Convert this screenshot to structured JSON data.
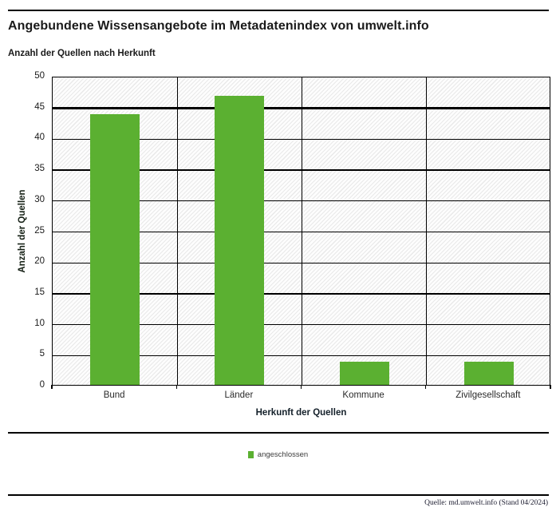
{
  "header": {
    "title": "Angebundene Wissensangebote im Metadatenindex von umwelt.info",
    "subtitle": "Anzahl der Quellen nach Herkunft"
  },
  "chart_data": {
    "type": "bar",
    "title": "Angebundene Wissensangebote im Metadatenindex von umwelt.info",
    "subtitle": "Anzahl der Quellen nach Herkunft",
    "categories": [
      "Bund",
      "Länder",
      "Kommune",
      "Zivilgesellschaft"
    ],
    "series": [
      {
        "name": "angeschlossen",
        "values": [
          44,
          47,
          4,
          4
        ]
      }
    ],
    "xlabel": "Herkunft der Quellen",
    "ylabel": "Anzahl der Quellen",
    "ylim": [
      0,
      50
    ],
    "ytick_step": 5,
    "grid": true,
    "emphasized_gridline": 45,
    "bar_color": "#5bb031",
    "plot_background": "hatched-diagonal-light-gray",
    "legend_position": "bottom-center"
  },
  "legend": {
    "items": [
      {
        "label": "angeschlossen",
        "color": "#5bb031"
      }
    ]
  },
  "footer": {
    "source": "Quelle: md.umwelt.info (Stand 04/2024)"
  }
}
